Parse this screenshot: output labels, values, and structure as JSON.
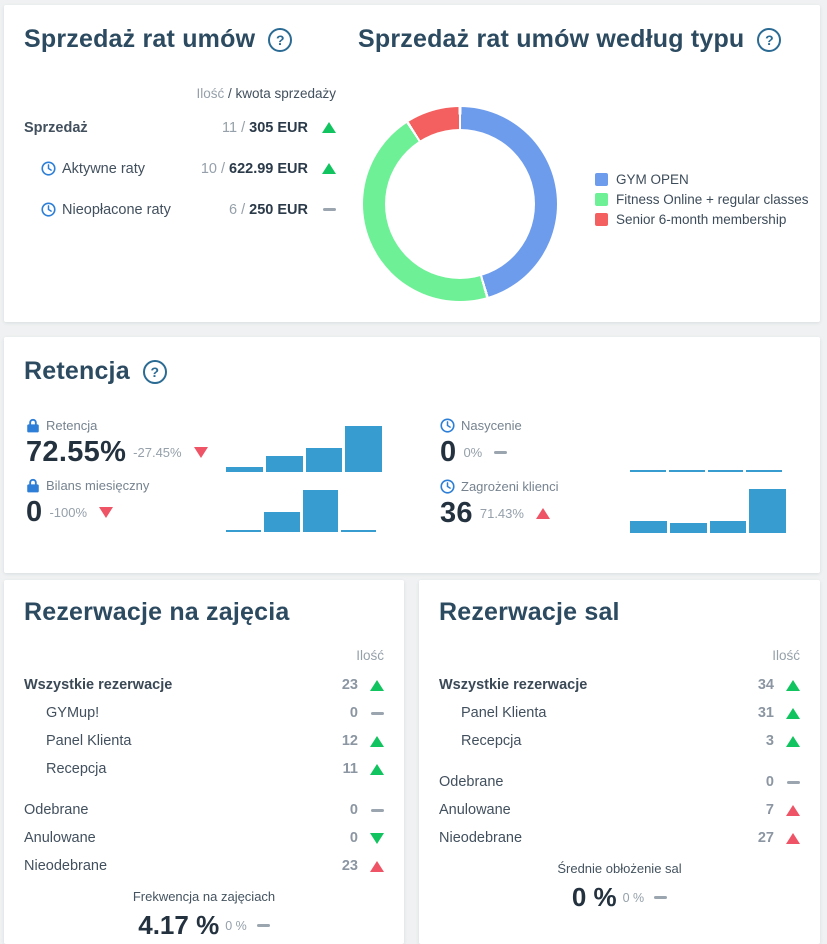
{
  "icons": {
    "help": "?"
  },
  "sales": {
    "title": "Sprzedaż rat umów",
    "header": {
      "qty": "Ilość",
      "rest": " / kwota sprzedaży"
    },
    "rows": [
      {
        "label": "Sprzedaż",
        "bold": true,
        "icon": null,
        "qty": "11 /",
        "amount": "305 EUR",
        "trend": "up-green"
      },
      {
        "label": "Aktywne raty",
        "bold": false,
        "icon": "clock",
        "qty": "10 /",
        "amount": "622.99 EUR",
        "trend": "up-green"
      },
      {
        "label": "Nieopłacone raty",
        "bold": false,
        "icon": "clock",
        "qty": "6 /",
        "amount": "250 EUR",
        "trend": "flat"
      }
    ]
  },
  "sales_by_type": {
    "title": "Sprzedaż rat umów według typu"
  },
  "retention": {
    "title": "Retencja",
    "metrics": [
      {
        "icon": "lock",
        "label": "Retencja",
        "value": "72.55%",
        "delta": "-27.45%",
        "trend": "down-red",
        "chart_id": "retencja_trend"
      },
      {
        "icon": "lock",
        "label": "Bilans miesięczny",
        "value": "0",
        "delta": "-100%",
        "trend": "down-red",
        "chart_id": "bilans_trend"
      },
      {
        "icon": "clock",
        "label": "Nasycenie",
        "value": "0",
        "delta": "0%",
        "trend": "flat",
        "chart_id": "nasycenie_trend"
      },
      {
        "icon": "clock",
        "label": "Zagrożeni klienci",
        "value": "36",
        "delta": "71.43%",
        "trend": "up-red",
        "chart_id": "zagrozeni_trend"
      }
    ]
  },
  "class_bookings": {
    "title": "Rezerwacje na zajęcia",
    "col_header": "Ilość",
    "rows": [
      {
        "label": "Wszystkie rezerwacje",
        "bold": true,
        "indent": false,
        "gap_before": false,
        "value": "23",
        "trend": "up-green"
      },
      {
        "label": "GYMup!",
        "bold": false,
        "indent": true,
        "gap_before": false,
        "value": "0",
        "trend": "flat"
      },
      {
        "label": "Panel Klienta",
        "bold": false,
        "indent": true,
        "gap_before": false,
        "value": "12",
        "trend": "up-green"
      },
      {
        "label": "Recepcja",
        "bold": false,
        "indent": true,
        "gap_before": false,
        "value": "11",
        "trend": "up-green"
      },
      {
        "label": "Odebrane",
        "bold": false,
        "indent": false,
        "gap_before": true,
        "value": "0",
        "trend": "flat"
      },
      {
        "label": "Anulowane",
        "bold": false,
        "indent": false,
        "gap_before": false,
        "value": "0",
        "trend": "down-green"
      },
      {
        "label": "Nieodebrane",
        "bold": false,
        "indent": false,
        "gap_before": false,
        "value": "23",
        "trend": "up-red"
      }
    ],
    "footer": {
      "label": "Frekwencja na zajęciach",
      "value": "4.17 %",
      "delta": "0 %",
      "trend": "flat"
    }
  },
  "room_bookings": {
    "title": "Rezerwacje sal",
    "col_header": "Ilość",
    "rows": [
      {
        "label": "Wszystkie rezerwacje",
        "bold": true,
        "indent": false,
        "gap_before": false,
        "value": "34",
        "trend": "up-green"
      },
      {
        "label": "Panel Klienta",
        "bold": false,
        "indent": true,
        "gap_before": false,
        "value": "31",
        "trend": "up-green"
      },
      {
        "label": "Recepcja",
        "bold": false,
        "indent": true,
        "gap_before": false,
        "value": "3",
        "trend": "up-green"
      },
      {
        "label": "Odebrane",
        "bold": false,
        "indent": false,
        "gap_before": true,
        "value": "0",
        "trend": "flat"
      },
      {
        "label": "Anulowane",
        "bold": false,
        "indent": false,
        "gap_before": false,
        "value": "7",
        "trend": "up-red"
      },
      {
        "label": "Nieodebrane",
        "bold": false,
        "indent": false,
        "gap_before": false,
        "value": "27",
        "trend": "up-red"
      }
    ],
    "footer": {
      "label": "Średnie obłożenie sal",
      "value": "0 %",
      "delta": "0 %",
      "trend": "flat"
    }
  },
  "chart_data": [
    {
      "id": "sales_by_type_donut",
      "type": "pie",
      "title": "Sprzedaż rat umów według typu",
      "style": "donut",
      "legend_position": "right",
      "segments": [
        {
          "label": "GYM OPEN",
          "value": 5,
          "color": "#6d9cec"
        },
        {
          "label": "Fitness Online + regular classes",
          "value": 5,
          "color": "#6ef096"
        },
        {
          "label": "Senior 6-month membership",
          "value": 1,
          "color": "#f4605f"
        }
      ],
      "total": 11
    },
    {
      "id": "retencja_trend",
      "type": "bar",
      "values": [
        11,
        35,
        53,
        100
      ],
      "unit": "relative-height-%",
      "color": "#379ccf"
    },
    {
      "id": "bilans_trend",
      "type": "bar",
      "values": [
        0,
        48,
        100,
        0
      ],
      "unit": "relative-height-%",
      "color": "#379ccf"
    },
    {
      "id": "nasycenie_trend",
      "type": "bar",
      "values": [
        0,
        0,
        0,
        0
      ],
      "unit": "relative-height-%",
      "color": "#379ccf"
    },
    {
      "id": "zagrozeni_trend",
      "type": "bar",
      "values": [
        10,
        8,
        10,
        36
      ],
      "unit": "count",
      "color": "#379ccf"
    }
  ]
}
